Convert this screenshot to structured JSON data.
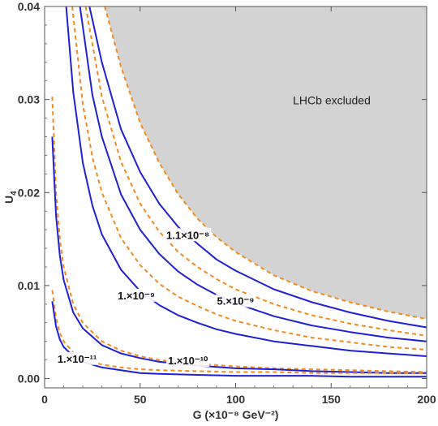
{
  "chart_data": {
    "type": "line",
    "xlabel": "G (×10⁻⁸ GeV⁻²)",
    "ylabel_main": "U",
    "ylabel_sub": "4",
    "xlim": [
      0,
      200
    ],
    "ylim": [
      -0.001,
      0.04
    ],
    "xticks": [
      0,
      50,
      100,
      150,
      200
    ],
    "xtick_labels": [
      "0",
      "50",
      "100",
      "150",
      "200"
    ],
    "yticks": [
      0,
      0.01,
      0.02,
      0.03,
      0.04
    ],
    "ytick_labels": [
      "0.00",
      "0.01",
      "0.02",
      "0.03",
      "0.04"
    ],
    "excluded_region_label": "LHCb excluded",
    "excluded_boundary": {
      "x": [
        31.5,
        40,
        50,
        60,
        70,
        80,
        90,
        100,
        120,
        140,
        160,
        180,
        200
      ],
      "y": [
        0.04,
        0.0335,
        0.0275,
        0.0232,
        0.0198,
        0.0172,
        0.0152,
        0.0136,
        0.0111,
        0.0094,
        0.0082,
        0.0072,
        0.0064
      ]
    },
    "colors": {
      "solid": "#1f1fd6",
      "dashed": "#f28a1c",
      "excluded": "#d3d3d3"
    },
    "series": [
      {
        "line": "solid",
        "label": "1.1×10⁻⁸",
        "x": [
          23.5,
          30,
          40,
          50,
          60,
          70,
          80,
          90,
          100,
          120,
          140,
          160,
          180,
          200
        ],
        "y": [
          0.04,
          0.034,
          0.0268,
          0.0222,
          0.0188,
          0.0163,
          0.0145,
          0.0128,
          0.0116,
          0.0096,
          0.0082,
          0.0071,
          0.0062,
          0.0055
        ]
      },
      {
        "line": "dashed",
        "x": [
          21.5,
          30,
          40,
          50,
          60,
          70,
          80,
          90,
          100,
          120,
          140,
          160,
          180,
          200
        ],
        "y": [
          0.04,
          0.0303,
          0.0233,
          0.0188,
          0.0158,
          0.0136,
          0.012,
          0.0107,
          0.0096,
          0.008,
          0.0068,
          0.0059,
          0.0052,
          0.0046
        ]
      },
      {
        "line": "solid",
        "label": "5.×10⁻⁹",
        "x": [
          18.5,
          25,
          30,
          40,
          50,
          60,
          70,
          80,
          90,
          100,
          120,
          140,
          160,
          180,
          200
        ],
        "y": [
          0.04,
          0.0305,
          0.026,
          0.0198,
          0.016,
          0.0134,
          0.0115,
          0.0101,
          0.009,
          0.0081,
          0.0067,
          0.0057,
          0.005,
          0.0044,
          0.004
        ]
      },
      {
        "line": "dashed",
        "x": [
          14.5,
          20,
          25,
          30,
          40,
          50,
          60,
          70,
          80,
          90,
          100,
          120,
          140,
          160,
          180,
          200
        ],
        "y": [
          0.04,
          0.0295,
          0.0238,
          0.02,
          0.0151,
          0.0122,
          0.0102,
          0.0088,
          0.0078,
          0.0069,
          0.0062,
          0.0052,
          0.0044,
          0.0039,
          0.0034,
          0.0031
        ]
      },
      {
        "line": "solid",
        "label": "1.×10⁻⁹",
        "x": [
          11.3,
          15,
          20,
          25,
          30,
          40,
          50,
          60,
          70,
          80,
          90,
          100,
          120,
          140,
          160,
          180,
          200
        ],
        "y": [
          0.04,
          0.0308,
          0.0232,
          0.0186,
          0.0155,
          0.0117,
          0.0094,
          0.0079,
          0.0068,
          0.006,
          0.0053,
          0.0048,
          0.004,
          0.0035,
          0.003,
          0.0027,
          0.0024
        ]
      },
      {
        "line": "dashed",
        "x": [
          4,
          6,
          8,
          10,
          15,
          20,
          30,
          40,
          50,
          60,
          80,
          100,
          120,
          140,
          160,
          180,
          200
        ],
        "y": [
          0.0303,
          0.02,
          0.015,
          0.012,
          0.008,
          0.006,
          0.004,
          0.003,
          0.0024,
          0.002,
          0.0016,
          0.0013,
          0.0011,
          0.001,
          0.0009,
          0.0008,
          0.0007
        ]
      },
      {
        "line": "solid",
        "label": "1.×10⁻¹⁰",
        "x": [
          4,
          6,
          8,
          10,
          15,
          20,
          30,
          40,
          50,
          60,
          80,
          100,
          120,
          140,
          160,
          180,
          200
        ],
        "y": [
          0.026,
          0.0175,
          0.0132,
          0.0106,
          0.0071,
          0.0054,
          0.0036,
          0.0027,
          0.0022,
          0.0018,
          0.0014,
          0.0011,
          0.001,
          0.0008,
          0.0007,
          0.0006,
          0.0006
        ]
      },
      {
        "line": "dashed",
        "x": [
          4,
          6,
          8,
          10,
          15,
          20,
          30,
          40,
          50,
          60,
          80,
          100,
          120,
          140,
          160,
          180,
          200
        ],
        "y": [
          0.0095,
          0.0065,
          0.0049,
          0.004,
          0.0028,
          0.0021,
          0.0015,
          0.0012,
          0.001,
          0.0009,
          0.0008,
          0.0007,
          0.0007,
          0.0006,
          0.0006,
          0.0006,
          0.0006
        ]
      },
      {
        "line": "solid",
        "label": "1.×10⁻¹¹",
        "x": [
          4,
          6,
          8,
          10,
          15,
          20,
          30,
          40,
          50,
          60,
          80,
          100,
          120,
          140,
          160,
          180,
          200
        ],
        "y": [
          0.0083,
          0.0056,
          0.0042,
          0.0034,
          0.0024,
          0.0018,
          0.0012,
          0.0009,
          0.0006,
          0.0005,
          0.0004,
          0.0003,
          0.0003,
          0.0003,
          0.0002,
          0.0002,
          0.0002
        ]
      }
    ]
  }
}
